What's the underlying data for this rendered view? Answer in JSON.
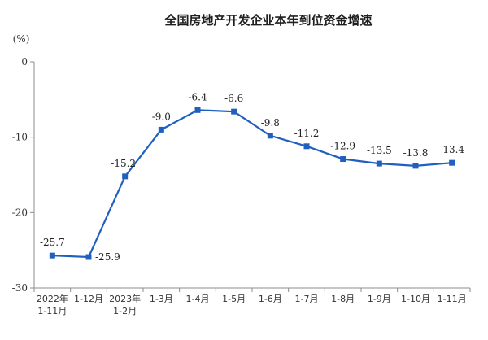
{
  "chart_data": {
    "type": "line",
    "title": "全国房地产开发企业本年到位资金增速",
    "unit": "(%)",
    "categories": [
      [
        "2022年",
        "1-11月"
      ],
      [
        "1-12月"
      ],
      [
        "2023年",
        "1-2月"
      ],
      [
        "1-3月"
      ],
      [
        "1-4月"
      ],
      [
        "1-5月"
      ],
      [
        "1-6月"
      ],
      [
        "1-7月"
      ],
      [
        "1-8月"
      ],
      [
        "1-9月"
      ],
      [
        "1-10月"
      ],
      [
        "1-11月"
      ]
    ],
    "values": [
      -25.7,
      -25.9,
      -15.2,
      -9.0,
      -6.4,
      -6.6,
      -9.8,
      -11.2,
      -12.9,
      -13.5,
      -13.8,
      -13.4
    ],
    "value_labels": [
      "-25.7",
      "-25.9",
      "-15.2",
      "-9.0",
      "-6.4",
      "-6.6",
      "-9.8",
      "-11.2",
      "-12.9",
      "-13.5",
      "-13.8",
      "-13.4"
    ],
    "ylim": [
      -30,
      0
    ],
    "yticks": [
      "0",
      "-10",
      "-20",
      "-30"
    ],
    "ytick_values": [
      0,
      -10,
      -20,
      -30
    ],
    "grid": false,
    "colors": {
      "line": "#1f5fbf",
      "axis": "#8c8c8c"
    }
  }
}
